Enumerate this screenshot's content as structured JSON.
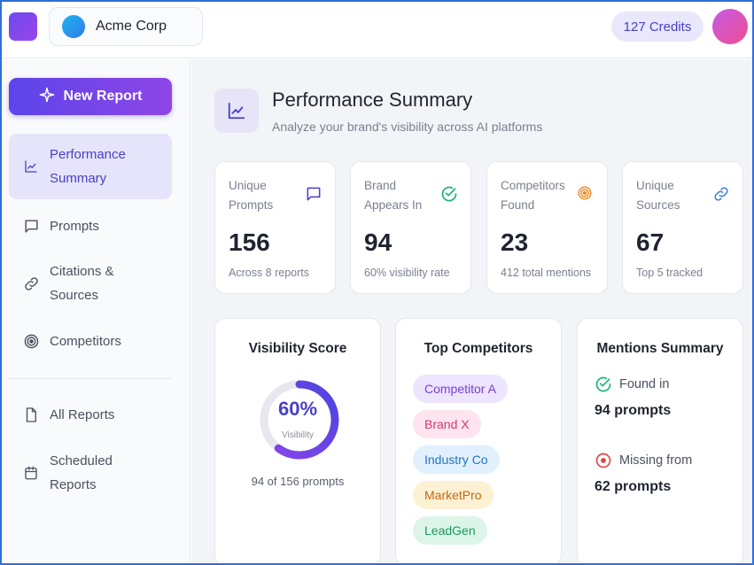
{
  "header": {
    "org_name": "Acme Corp",
    "credits": "127 Credits"
  },
  "sidebar": {
    "new_report": "New Report",
    "items": [
      {
        "label_line1": "Performance",
        "label_line2": "Summary",
        "icon": "chart-line-icon",
        "active": true
      },
      {
        "label_line1": "Prompts",
        "label_line2": "",
        "icon": "message-square-icon",
        "active": false
      },
      {
        "label_line1": "Citations &",
        "label_line2": "Sources",
        "icon": "link-icon",
        "active": false
      },
      {
        "label_line1": "Competitors",
        "label_line2": "",
        "icon": "target-icon",
        "active": false
      },
      {
        "label_line1": "All Reports",
        "label_line2": "",
        "icon": "file-icon",
        "active": false
      },
      {
        "label_line1": "Scheduled",
        "label_line2": "Reports",
        "icon": "calendar-icon",
        "active": false
      }
    ]
  },
  "page": {
    "title": "Performance Summary",
    "subtitle": "Analyze your brand's visibility across AI platforms"
  },
  "stats": [
    {
      "label_line1": "Unique",
      "label_line2": "Prompts",
      "value": "156",
      "foot": "Across 8 reports",
      "icon": "message-square-icon",
      "color": "#4a3fc8"
    },
    {
      "label_line1": "Brand",
      "label_line2": "Appears In",
      "value": "94",
      "foot": "60% visibility rate",
      "icon": "check-circle-icon",
      "color": "#19b37a"
    },
    {
      "label_line1": "Competitors",
      "label_line2": "Found",
      "value": "23",
      "foot": "412 total mentions",
      "icon": "target-icon",
      "color": "#f08a24"
    },
    {
      "label_line1": "Unique",
      "label_line2": "Sources",
      "value": "67",
      "foot": "Top 5 tracked",
      "icon": "link-icon",
      "color": "#3b7fe0"
    }
  ],
  "visibility": {
    "title": "Visibility Score",
    "percent": "60%",
    "fraction": 0.6,
    "label": "Visibility",
    "foot": "94 of 156 prompts"
  },
  "competitors": {
    "title": "Top Competitors",
    "chips": [
      {
        "name": "Competitor A",
        "bg": "#ede4fd",
        "fg": "#7b3fd6"
      },
      {
        "name": "Brand X",
        "bg": "#fde4ee",
        "fg": "#d13a72"
      },
      {
        "name": "Industry Co",
        "bg": "#e1f0fd",
        "fg": "#2475c7"
      },
      {
        "name": "MarketPro",
        "bg": "#fdf1d4",
        "fg": "#c26a10"
      },
      {
        "name": "LeadGen",
        "bg": "#dcf5e8",
        "fg": "#1a9a5e"
      }
    ]
  },
  "mentions": {
    "title": "Mentions Summary",
    "found_label": "Found in",
    "found_value": "94 prompts",
    "missing_label": "Missing from",
    "missing_value": "62 prompts"
  },
  "colors": {
    "accent": "#5b45ea",
    "success": "#19b37a",
    "danger": "#e04545"
  }
}
